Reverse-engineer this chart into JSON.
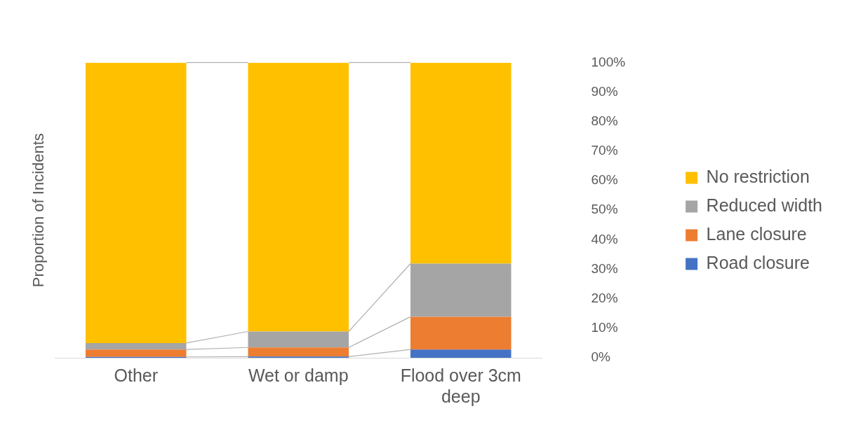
{
  "chart_data": {
    "type": "bar",
    "stacked": true,
    "ylabel": "Proportion of Incidents",
    "categories": [
      "Other",
      "Wet or damp",
      "Flood over 3cm deep"
    ],
    "series": [
      {
        "name": "Road closure",
        "color": "#4472c4",
        "values": [
          0.3,
          0.4,
          2.8
        ]
      },
      {
        "name": "Lane closure",
        "color": "#ed7d31",
        "values": [
          2.5,
          3.1,
          11.1
        ]
      },
      {
        "name": "Reduced width",
        "color": "#a5a5a5",
        "values": [
          2.2,
          5.4,
          18.0
        ]
      },
      {
        "name": "No restriction",
        "color": "#ffc000",
        "values": [
          95.0,
          91.1,
          68.1
        ]
      }
    ],
    "ylim": [
      0,
      100
    ],
    "yticks": [
      {
        "value": 0,
        "label": "0%"
      },
      {
        "value": 10,
        "label": "10%"
      },
      {
        "value": 20,
        "label": "20%"
      },
      {
        "value": 30,
        "label": "30%"
      },
      {
        "value": 40,
        "label": "40%"
      },
      {
        "value": 50,
        "label": "50%"
      },
      {
        "value": 60,
        "label": "60%"
      },
      {
        "value": 70,
        "label": "70%"
      },
      {
        "value": 80,
        "label": "80%"
      },
      {
        "value": 90,
        "label": "90%"
      },
      {
        "value": 100,
        "label": "100%"
      }
    ],
    "grid": false,
    "legend": "right"
  }
}
